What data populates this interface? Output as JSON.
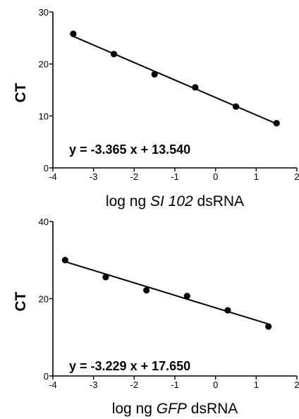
{
  "chart_data": [
    {
      "type": "scatter",
      "ylabel": "CT",
      "xlabel_parts": [
        {
          "text": "log ng ",
          "italic": false
        },
        {
          "text": "SI 102",
          "italic": true
        },
        {
          "text": " dsRNA",
          "italic": false
        }
      ],
      "xlim": [
        -4,
        2
      ],
      "ylim": [
        0,
        30
      ],
      "xticks": [
        -4,
        -3,
        -2,
        -1,
        0,
        1,
        2
      ],
      "yticks": [
        0,
        10,
        20,
        30
      ],
      "series": [
        {
          "x": [
            -3.5,
            -2.5,
            -1.5,
            -0.5,
            0.5,
            1.5
          ],
          "y": [
            25.8,
            21.9,
            18.0,
            15.5,
            11.8,
            8.6
          ]
        }
      ],
      "fit": {
        "slope": -3.365,
        "intercept": 13.54,
        "x_range": [
          -3.5,
          1.5
        ]
      },
      "equation": "y = -3.365 x + 13.540",
      "grid": false
    },
    {
      "type": "scatter",
      "ylabel": "CT",
      "xlabel_parts": [
        {
          "text": "log ng ",
          "italic": false
        },
        {
          "text": "GFP",
          "italic": true
        },
        {
          "text": " dsRNA",
          "italic": false
        }
      ],
      "xlim": [
        -4,
        2
      ],
      "ylim": [
        0,
        40
      ],
      "xticks": [
        -4,
        -3,
        -2,
        -1,
        0,
        1,
        2
      ],
      "yticks": [
        0,
        20,
        40
      ],
      "series": [
        {
          "x": [
            -3.7,
            -2.7,
            -1.7,
            -0.7,
            0.3,
            1.3
          ],
          "y": [
            30.0,
            25.6,
            22.2,
            20.7,
            17.0,
            12.8
          ]
        }
      ],
      "fit": {
        "slope": -3.229,
        "intercept": 17.65,
        "x_range": [
          -3.7,
          1.3
        ]
      },
      "equation": "y = -3.229 x + 17.650",
      "grid": false
    }
  ]
}
